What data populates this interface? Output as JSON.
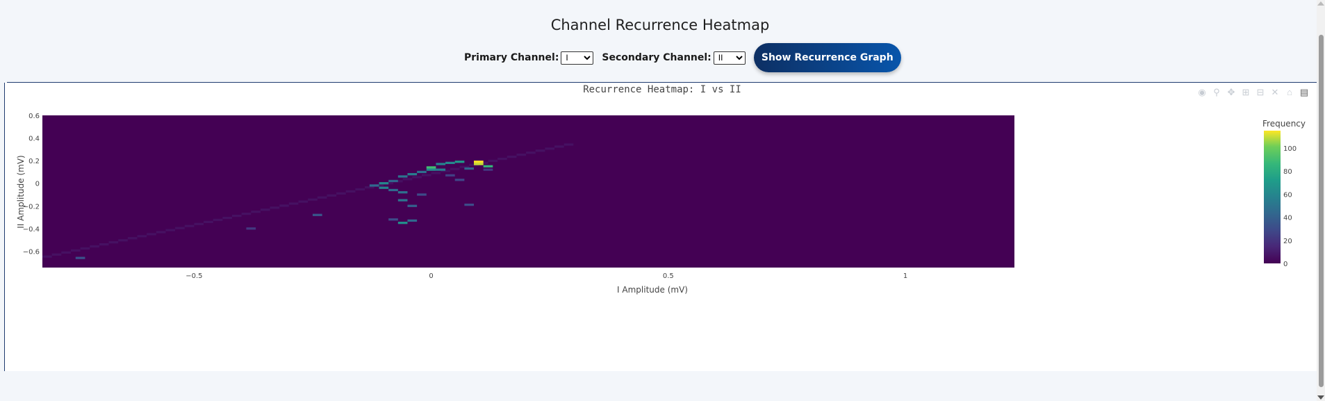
{
  "page": {
    "title": "Channel Recurrence Heatmap"
  },
  "controls": {
    "primary_label": "Primary Channel:",
    "primary_value": "I",
    "primary_options": [
      "I"
    ],
    "secondary_label": "Secondary Channel:",
    "secondary_value": "II",
    "secondary_options": [
      "II"
    ],
    "button_label": "Show Recurrence Graph"
  },
  "modebar": {
    "icons": [
      "camera-icon",
      "zoom-icon",
      "pan-icon",
      "zoom-in-icon",
      "zoom-out-icon",
      "autoscale-icon",
      "reset-axes-icon",
      "plotly-logo-icon"
    ]
  },
  "colors": {
    "accent": "#0855ab",
    "background": "#f3f6fa"
  },
  "chart_data": {
    "type": "heatmap",
    "title": "Recurrence Heatmap: I vs II",
    "xlabel": "I Amplitude (mV)",
    "ylabel": "II Amplitude (mV)",
    "xlim": [
      -0.82,
      1.23
    ],
    "ylim": [
      -0.745,
      0.6
    ],
    "x_ticks": [
      -0.5,
      0,
      0.5,
      1
    ],
    "x_tick_labels": [
      "−0.5",
      "0",
      "0.5",
      "1"
    ],
    "y_ticks": [
      0.6,
      0.4,
      0.2,
      0,
      -0.2,
      -0.4,
      -0.6
    ],
    "y_tick_labels": [
      "0.6",
      "0.4",
      "0.2",
      "0",
      "−0.2",
      "−0.4",
      "−0.6"
    ],
    "colorscale": "Viridis",
    "colorbar": {
      "title": "Frequency",
      "range": [
        0,
        115
      ],
      "ticks": [
        0,
        20,
        40,
        60,
        80,
        100
      ],
      "tick_labels": [
        "0",
        "20",
        "40",
        "60",
        "80",
        "100"
      ]
    },
    "cell_size": {
      "dx": 0.02,
      "dy": 0.02
    },
    "diagonal_band": {
      "x_range": [
        -0.82,
        0.3
      ],
      "slope": 0.9,
      "intercept": 0.09,
      "value": 6
    },
    "hot_cells": [
      {
        "x": 0.1,
        "y": 0.19,
        "value": 115
      },
      {
        "x": 0.1,
        "y": 0.17,
        "value": 110
      },
      {
        "x": 0.12,
        "y": 0.15,
        "value": 85
      },
      {
        "x": 0.06,
        "y": 0.19,
        "value": 70
      },
      {
        "x": 0.04,
        "y": 0.18,
        "value": 60
      },
      {
        "x": 0.02,
        "y": 0.17,
        "value": 58
      },
      {
        "x": 0.02,
        "y": 0.12,
        "value": 55
      },
      {
        "x": 0.0,
        "y": 0.14,
        "value": 90
      },
      {
        "x": 0.0,
        "y": 0.12,
        "value": 62
      },
      {
        "x": -0.02,
        "y": 0.1,
        "value": 48
      },
      {
        "x": -0.04,
        "y": 0.08,
        "value": 55
      },
      {
        "x": -0.06,
        "y": 0.06,
        "value": 50
      },
      {
        "x": -0.08,
        "y": 0.02,
        "value": 42
      },
      {
        "x": -0.1,
        "y": 0.0,
        "value": 60
      },
      {
        "x": -0.1,
        "y": -0.04,
        "value": 58
      },
      {
        "x": -0.12,
        "y": -0.02,
        "value": 45
      },
      {
        "x": -0.08,
        "y": -0.06,
        "value": 45
      },
      {
        "x": -0.06,
        "y": -0.08,
        "value": 48
      },
      {
        "x": -0.06,
        "y": -0.15,
        "value": 50
      },
      {
        "x": -0.04,
        "y": -0.2,
        "value": 40
      },
      {
        "x": -0.06,
        "y": -0.35,
        "value": 65
      },
      {
        "x": -0.04,
        "y": -0.33,
        "value": 45
      },
      {
        "x": -0.08,
        "y": -0.32,
        "value": 30
      },
      {
        "x": 0.08,
        "y": 0.13,
        "value": 42
      },
      {
        "x": 0.08,
        "y": -0.19,
        "value": 30
      },
      {
        "x": -0.24,
        "y": -0.28,
        "value": 35
      },
      {
        "x": -0.74,
        "y": -0.66,
        "value": 32
      },
      {
        "x": -0.38,
        "y": -0.4,
        "value": 22
      },
      {
        "x": 0.06,
        "y": 0.03,
        "value": 28
      },
      {
        "x": -0.02,
        "y": -0.1,
        "value": 30
      },
      {
        "x": 0.04,
        "y": 0.07,
        "value": 25
      },
      {
        "x": 0.12,
        "y": 0.12,
        "value": 22
      }
    ]
  }
}
